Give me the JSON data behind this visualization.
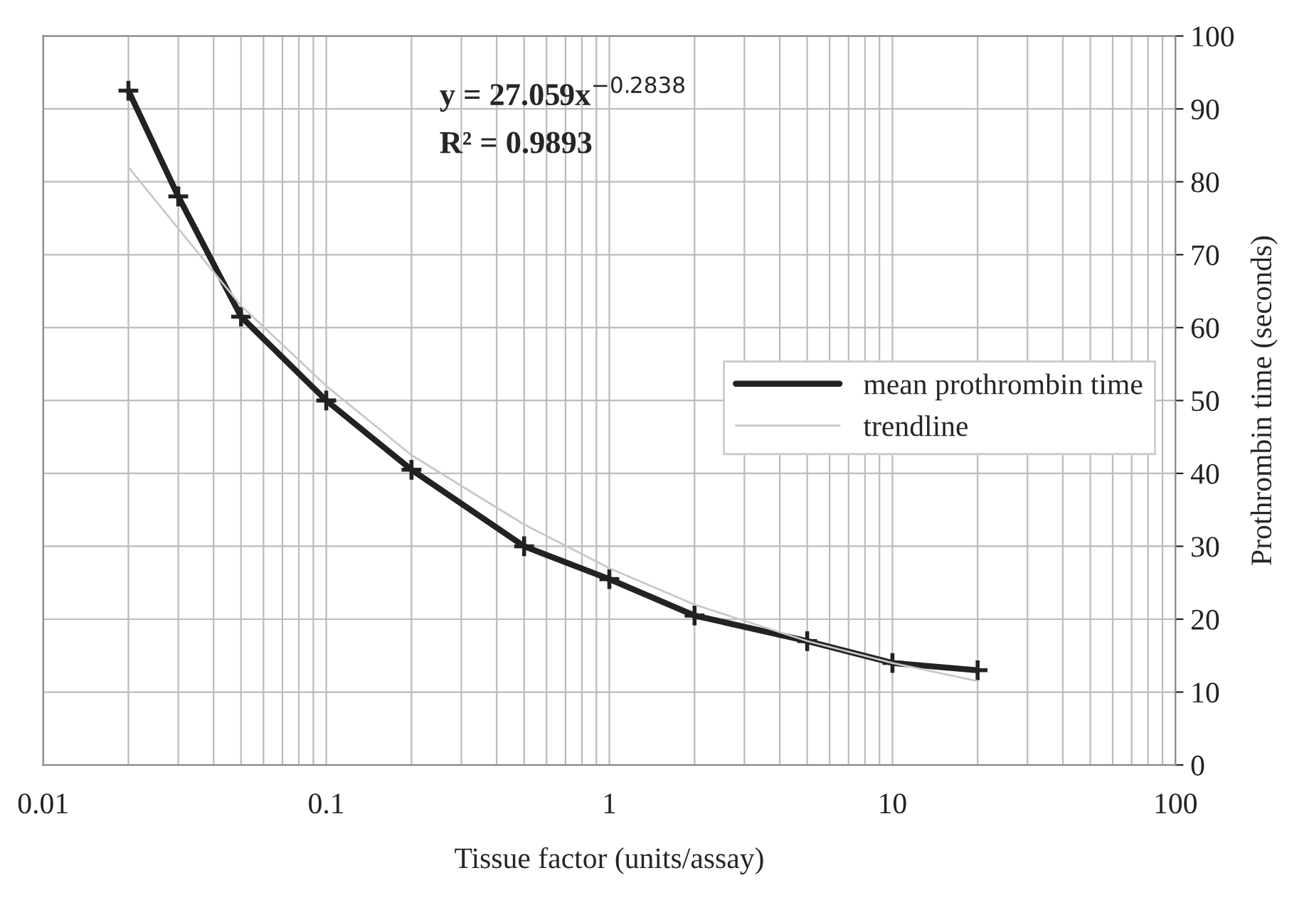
{
  "chart_data": {
    "type": "line",
    "xlabel": "Tissue factor (units/assay)",
    "ylabel": "Prothrombin time (seconds)",
    "series": [
      {
        "name": "mean prothrombin time",
        "color": "#222222",
        "marker": "cross",
        "x": [
          0.02,
          0.03,
          0.05,
          0.1,
          0.2,
          0.5,
          1,
          2,
          5,
          10,
          20
        ],
        "values": [
          92.5,
          78,
          61.5,
          50,
          40.5,
          30,
          25.5,
          20.5,
          17,
          14,
          13
        ]
      },
      {
        "name": "trendline",
        "color": "#c8c8c8",
        "marker": "none",
        "x": [
          0.02,
          0.05,
          0.1,
          0.2,
          0.5,
          1,
          2,
          5,
          10,
          20
        ],
        "values": [
          82,
          63,
          52,
          42.5,
          33,
          27,
          22,
          17,
          14,
          11.5
        ]
      }
    ],
    "annotations": [
      "y = 27.059x$^{−0.2838}$",
      "R² = 0.9893"
    ],
    "log": "x",
    "xlim": [
      0.01,
      100
    ],
    "xticks": [
      0.01,
      0.1,
      1,
      10,
      100
    ],
    "ylim": [
      0,
      100
    ],
    "yticks": [
      0,
      10,
      20,
      30,
      40,
      50,
      60,
      70,
      80,
      90,
      100
    ],
    "grid": true,
    "legend": "right",
    "line_style": "solid"
  }
}
